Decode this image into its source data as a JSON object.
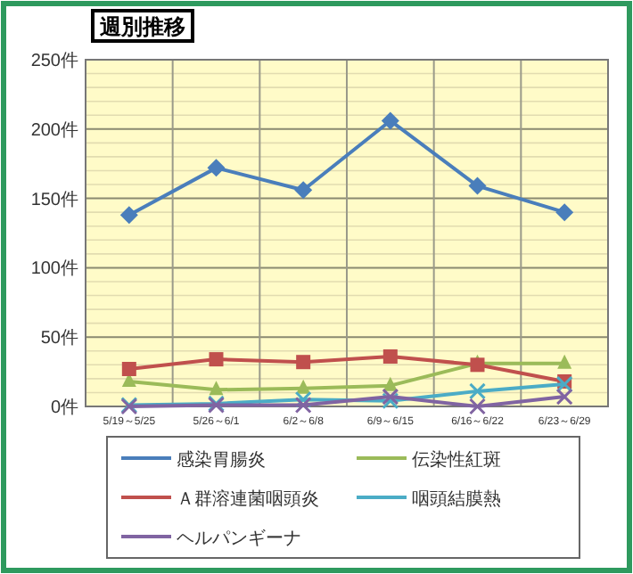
{
  "chart_data": {
    "type": "line",
    "title": "週別推移",
    "categories": [
      "5/19～5/25",
      "5/26～6/1",
      "6/2～6/8",
      "6/9～6/15",
      "6/16～6/22",
      "6/23～6/29"
    ],
    "series": [
      {
        "name": "感染胃腸炎",
        "color": "#4a7ebb",
        "marker": "diamond",
        "values": [
          138,
          172,
          156,
          206,
          159,
          140
        ]
      },
      {
        "name": "伝染性紅斑",
        "color": "#9bbb59",
        "marker": "triangle",
        "values": [
          18,
          12,
          13,
          15,
          31,
          31
        ]
      },
      {
        "name": "Ａ群溶連菌咽頭炎",
        "color": "#c0504d",
        "marker": "square",
        "values": [
          27,
          34,
          32,
          36,
          30,
          18
        ]
      },
      {
        "name": "咽頭結膜熱",
        "color": "#4bacc6",
        "marker": "cross",
        "values": [
          1,
          2,
          5,
          4,
          11,
          16
        ]
      },
      {
        "name": "ヘルパンギーナ",
        "color": "#8064a2",
        "marker": "cross",
        "values": [
          0,
          1,
          1,
          7,
          0,
          7
        ]
      }
    ],
    "ylim": [
      0,
      250
    ],
    "yticks": [
      {
        "value": 0,
        "label": "0件"
      },
      {
        "value": 10,
        "label": null
      },
      {
        "value": 20,
        "label": null
      },
      {
        "value": 30,
        "label": null
      },
      {
        "value": 40,
        "label": null
      },
      {
        "value": 50,
        "label": "50件"
      },
      {
        "value": 60,
        "label": null
      },
      {
        "value": 70,
        "label": null
      },
      {
        "value": 80,
        "label": null
      },
      {
        "value": 90,
        "label": null
      },
      {
        "value": 100,
        "label": "100件"
      },
      {
        "value": 110,
        "label": null
      },
      {
        "value": 120,
        "label": null
      },
      {
        "value": 130,
        "label": null
      },
      {
        "value": 140,
        "label": null
      },
      {
        "value": 150,
        "label": "150件"
      },
      {
        "value": 160,
        "label": null
      },
      {
        "value": 170,
        "label": null
      },
      {
        "value": 180,
        "label": null
      },
      {
        "value": 190,
        "label": null
      },
      {
        "value": 200,
        "label": "200件"
      },
      {
        "value": 210,
        "label": null
      },
      {
        "value": 220,
        "label": null
      },
      {
        "value": 230,
        "label": null
      },
      {
        "value": 240,
        "label": null
      },
      {
        "value": 250,
        "label": "250件"
      }
    ],
    "grid": true,
    "legend": "bottom",
    "line_style": "solid"
  }
}
